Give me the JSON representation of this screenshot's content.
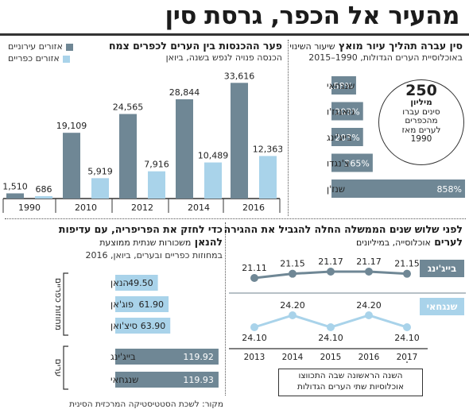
{
  "title": "מהעיר אל הכפר, גרסת סין",
  "colors": {
    "dark": "#6f8795",
    "light": "#a9d3ea",
    "label_bg": "#6f8795",
    "gray_line": "#8a9aa3"
  },
  "panel_income": {
    "title": "פער ההכנסות בין הערים לכפרים צמח",
    "subtitle": "הכנסה פנויה לנפש בשנה, ביואן",
    "legend": {
      "urban": "אזורים עירוניים",
      "rural": "אזורים כפריים"
    }
  },
  "panel_urbanization": {
    "title_bold": "סין עברה תהליך עיור מואץ",
    "title_rest": "שיעור השינוי",
    "subtitle": "באוכלוסיית הערים הגדולות, 1990–2015",
    "callout": {
      "big": "250",
      "unit": "מיליון",
      "line1": "סינים עברו",
      "line2": "מהכפרים",
      "line3": "לערים מאז",
      "line4": "1990"
    }
  },
  "panel_population": {
    "title_bold": "לפני שלוש שנים הממשלה החלה להגביל את ההגירה",
    "title_bold2": "לערים",
    "title_rest": "אוכלוסייה, במיליונים",
    "note_line1": "השנה הראשונה שבה התכווצו",
    "note_line2": "אוכלוסיות שתי הערים הגדולות"
  },
  "panel_wages": {
    "title_bold": "כדי לחזק את הפריפריה, עם עדיפות",
    "title_bold2": "להנאן",
    "title_rest": "משכורות שנתית ממוצעת",
    "subtitle": "במחוזות כפריים ובערים, ביואן, 2016",
    "group_rural": "מחוזות כפריים",
    "group_urban": "ערים"
  },
  "source": "מקור: לשכת הסטטיסטיקה המרכזית הסינית",
  "chart_data": [
    {
      "type": "bar",
      "title": "פער ההכנסות בין הערים לכפרים צמח",
      "subtitle": "הכנסה פנויה לנפש בשנה, ביואן",
      "categories": [
        "1990",
        "2010",
        "2012",
        "2014",
        "2016"
      ],
      "series": [
        {
          "name": "אזורים עירוניים",
          "values": [
            1510,
            19109,
            24565,
            28844,
            33616
          ]
        },
        {
          "name": "אזורים כפריים",
          "values": [
            686,
            5919,
            7916,
            10489,
            12363
          ]
        }
      ],
      "value_labels": {
        "urban": [
          "1,510",
          "19,109",
          "24,565",
          "28,844",
          "33,616"
        ],
        "rural": [
          "686",
          "5,919",
          "7,916",
          "10,489",
          "12,363"
        ]
      },
      "ylim": [
        0,
        36000
      ]
    },
    {
      "type": "bar",
      "title": "סין עברה תהליך עיור מואץ",
      "categories": [
        "שנגחאי",
        "גואנגז'ו",
        "בייג'ינג",
        "צ'נגדו",
        "שנז'ן"
      ],
      "values": [
        158,
        203,
        203,
        265,
        858
      ],
      "value_labels": [
        "158%",
        "203%",
        "203%",
        "265%",
        "858%"
      ],
      "orientation": "horizontal"
    },
    {
      "type": "line",
      "title": "אוכלוסייה, במיליונים",
      "x": [
        "2013",
        "2014",
        "2015",
        "2016",
        "2017"
      ],
      "series": [
        {
          "name": "בייג'ינג",
          "values": [
            21.11,
            21.15,
            21.17,
            21.17,
            21.15
          ],
          "labels": [
            "21.11",
            "21.15",
            "21.17",
            "21.17",
            "21.15"
          ]
        },
        {
          "name": "שנגחאי",
          "values": [
            24.1,
            24.2,
            24.1,
            24.2,
            24.1
          ],
          "labels": [
            "24.10",
            "24.20",
            "24.10",
            "24.20",
            "24.10"
          ]
        }
      ]
    },
    {
      "type": "bar",
      "title": "משכורות שנתית ממוצעת",
      "categories": [
        "הנאן",
        "פוג'אן",
        "סיצ'ואן",
        "בייג'ינג",
        "שנגחאי"
      ],
      "values": [
        49.5,
        61.9,
        63.9,
        119.92,
        119.93
      ],
      "value_labels": [
        "49.50",
        "61.90",
        "63.90",
        "119.92",
        "119.93"
      ],
      "groups": [
        "מחוזות כפריים",
        "מחוזות כפריים",
        "מחוזות כפריים",
        "ערים",
        "ערים"
      ],
      "orientation": "horizontal"
    }
  ]
}
